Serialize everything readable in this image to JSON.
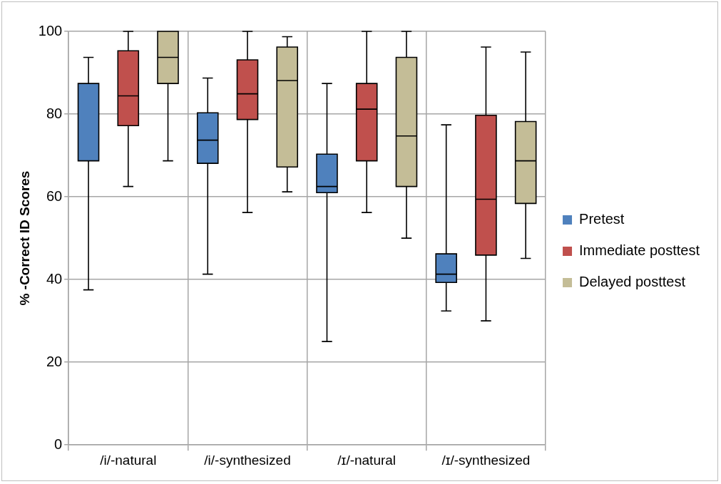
{
  "chart_data": {
    "type": "box",
    "ylabel": "% -Correct ID Scores",
    "categories": [
      "/i/-natural",
      "/i/-synthesized",
      "/ɪ/-natural",
      "/ɪ/-synthesized"
    ],
    "ylim": [
      0,
      100
    ],
    "yticks": [
      0,
      20,
      40,
      60,
      80,
      100
    ],
    "grid": true,
    "legend": "right",
    "series": [
      {
        "name": "Pretest",
        "color": "#4f81bd",
        "boxes": [
          {
            "low": 37.5,
            "q1": 68.7,
            "median": 87.4,
            "q3": 87.4,
            "high": 93.7
          },
          {
            "low": 41.3,
            "q1": 68.1,
            "median": 73.7,
            "q3": 80.3,
            "high": 88.7
          },
          {
            "low": 25,
            "q1": 61,
            "median": 62.5,
            "q3": 70.3,
            "high": 87.4
          },
          {
            "low": 32.4,
            "q1": 39.3,
            "median": 41.3,
            "q3": 46.2,
            "high": 77.4
          }
        ]
      },
      {
        "name": "Immediate posttest",
        "color": "#c0504d",
        "boxes": [
          {
            "low": 62.5,
            "q1": 77.2,
            "median": 84.4,
            "q3": 95.3,
            "high": 100
          },
          {
            "low": 56.2,
            "q1": 78.7,
            "median": 84.9,
            "q3": 93.1,
            "high": 100
          },
          {
            "low": 56.2,
            "q1": 68.7,
            "median": 81.2,
            "q3": 87.4,
            "high": 100
          },
          {
            "low": 30,
            "q1": 45.9,
            "median": 59.4,
            "q3": 79.7,
            "high": 96.2
          }
        ]
      },
      {
        "name": "Delayed posttest",
        "color": "#c4bd97",
        "boxes": [
          {
            "low": 68.7,
            "q1": 87.4,
            "median": 93.7,
            "q3": 100,
            "high": 100
          },
          {
            "low": 61.2,
            "q1": 67.2,
            "median": 88.1,
            "q3": 96.2,
            "high": 98.7
          },
          {
            "low": 50,
            "q1": 62.5,
            "median": 74.7,
            "q3": 93.7,
            "high": 100
          },
          {
            "low": 45.1,
            "q1": 58.4,
            "median": 68.7,
            "q3": 78.2,
            "high": 95
          }
        ]
      }
    ]
  }
}
